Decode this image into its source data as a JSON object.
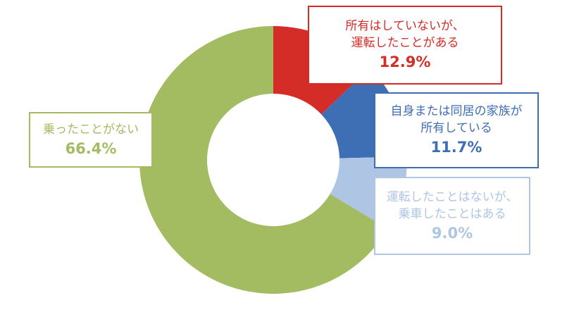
{
  "chart_data": {
    "type": "pie",
    "donut": true,
    "slices": [
      {
        "label": "所有はしていないが、\n運転したことがある",
        "value": 12.9,
        "value_label": "12.9%",
        "color": "#d42c26"
      },
      {
        "label": "自身または同居の家族が\n所有している",
        "value": 11.7,
        "value_label": "11.7%",
        "color": "#3e6eb4"
      },
      {
        "label": "運転したことはないが、\n乗車したことはある",
        "value": 9.0,
        "value_label": "9.0%",
        "color": "#aec6e4"
      },
      {
        "label": "乗ったことがない",
        "value": 66.4,
        "value_label": "66.4%",
        "color": "#a3bb61"
      }
    ],
    "start_angle_deg": 0,
    "direction": "clockwise"
  }
}
